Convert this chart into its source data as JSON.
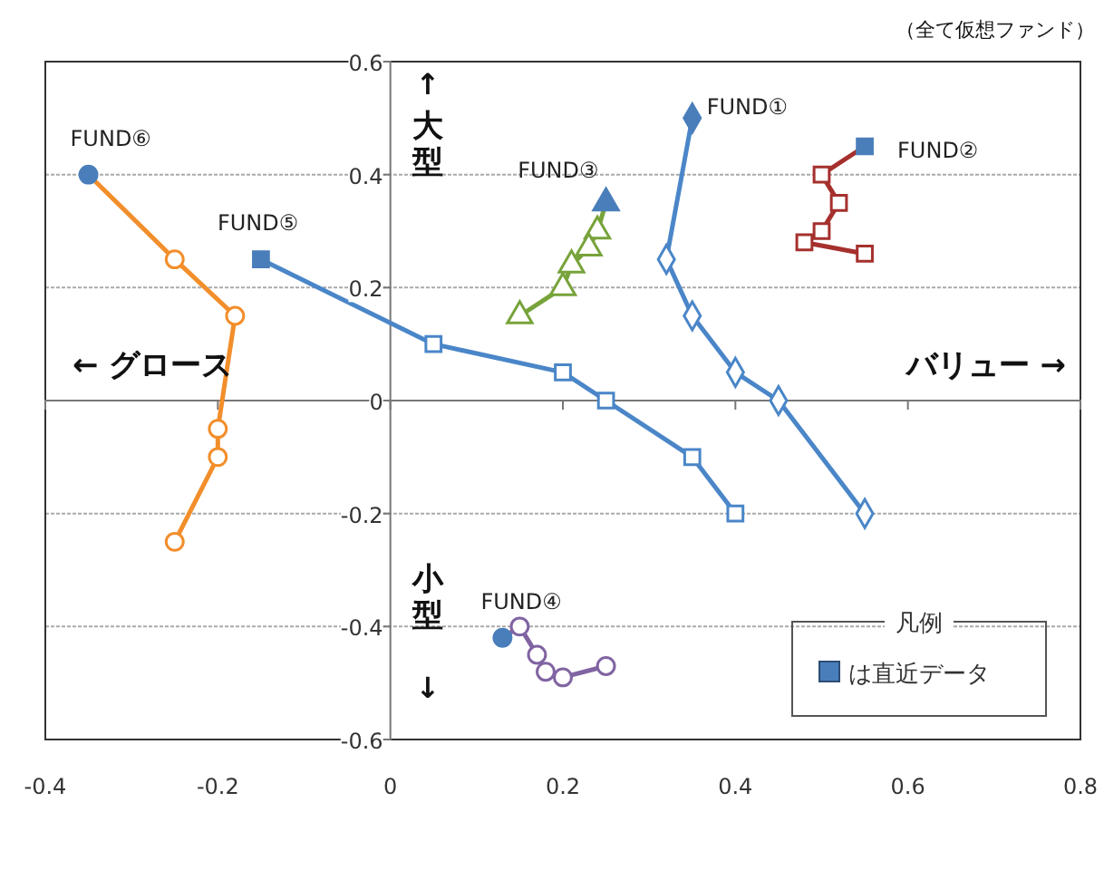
{
  "chart_data": {
    "type": "line",
    "legend_title": "凡例",
    "grid": "y",
    "line_style": "solid",
    "xlim": [
      -0.4,
      0.8
    ],
    "xticks": [
      -0.4,
      -0.2,
      0,
      0.2,
      0.4,
      0.6,
      0.8
    ],
    "ylim": [
      -0.6,
      0.6
    ],
    "yticks": [
      -0.6,
      -0.4,
      -0.2,
      0,
      0.2,
      0.4,
      0.6
    ],
    "annotations": [
      "（全て仮想ファンド）",
      "↑",
      "大型",
      "小型",
      "↓",
      "← グロース",
      "バリュー →",
      "は直近データ"
    ],
    "series": [
      {
        "name": "FUND①",
        "color": "#4a86c8",
        "marker": "diamond",
        "colors": [
          "#4a7ebb",
          "#ffffff",
          "#ffffff",
          "#ffffff",
          "#ffffff",
          "#ffffff"
        ],
        "x": [
          0.35,
          0.32,
          0.35,
          0.4,
          0.45,
          0.55
        ],
        "values": [
          0.5,
          0.25,
          0.15,
          0.05,
          0,
          -0.2
        ]
      },
      {
        "name": "FUND②",
        "color": "#a5302d",
        "marker": "square",
        "colors": [
          "#4a7ebb",
          "#ffffff",
          "#ffffff",
          "#ffffff",
          "#ffffff",
          "#ffffff"
        ],
        "x": [
          0.55,
          0.5,
          0.52,
          0.5,
          0.48,
          0.55
        ],
        "values": [
          0.45,
          0.4,
          0.35,
          0.3,
          0.28,
          0.26
        ]
      },
      {
        "name": "FUND③",
        "color": "#77a33a",
        "marker": "triangle",
        "colors": [
          "#4a7ebb",
          "#ffffff",
          "#ffffff",
          "#ffffff",
          "#ffffff",
          "#ffffff"
        ],
        "x": [
          0.25,
          0.24,
          0.23,
          0.21,
          0.2,
          0.15
        ],
        "values": [
          0.35,
          0.3,
          0.27,
          0.24,
          0.2,
          0.15
        ]
      },
      {
        "name": "FUND④",
        "color": "#8064a2",
        "marker": "circle",
        "colors": [
          "#4a7ebb",
          "#ffffff",
          "#ffffff",
          "#ffffff",
          "#ffffff",
          "#ffffff"
        ],
        "x": [
          0.13,
          0.15,
          0.17,
          0.18,
          0.2,
          0.25
        ],
        "values": [
          -0.42,
          -0.4,
          -0.45,
          -0.48,
          -0.49,
          -0.47
        ]
      },
      {
        "name": "FUND⑤",
        "color": "#4a86c8",
        "marker": "square",
        "colors": [
          "#4a7ebb",
          "#ffffff",
          "#ffffff",
          "#ffffff",
          "#ffffff",
          "#ffffff"
        ],
        "x": [
          -0.15,
          0.05,
          0.2,
          0.25,
          0.35,
          0.4
        ],
        "values": [
          0.25,
          0.1,
          0.05,
          0,
          -0.1,
          -0.2
        ]
      },
      {
        "name": "FUND⑥",
        "color": "#f28e2b",
        "marker": "circle",
        "colors": [
          "#4a7ebb",
          "#ffffff",
          "#ffffff",
          "#ffffff",
          "#ffffff",
          "#ffffff"
        ],
        "x": [
          -0.35,
          -0.25,
          -0.18,
          -0.2,
          -0.2,
          -0.25
        ],
        "values": [
          0.4,
          0.25,
          0.15,
          -0.05,
          -0.1,
          -0.25
        ]
      }
    ]
  }
}
